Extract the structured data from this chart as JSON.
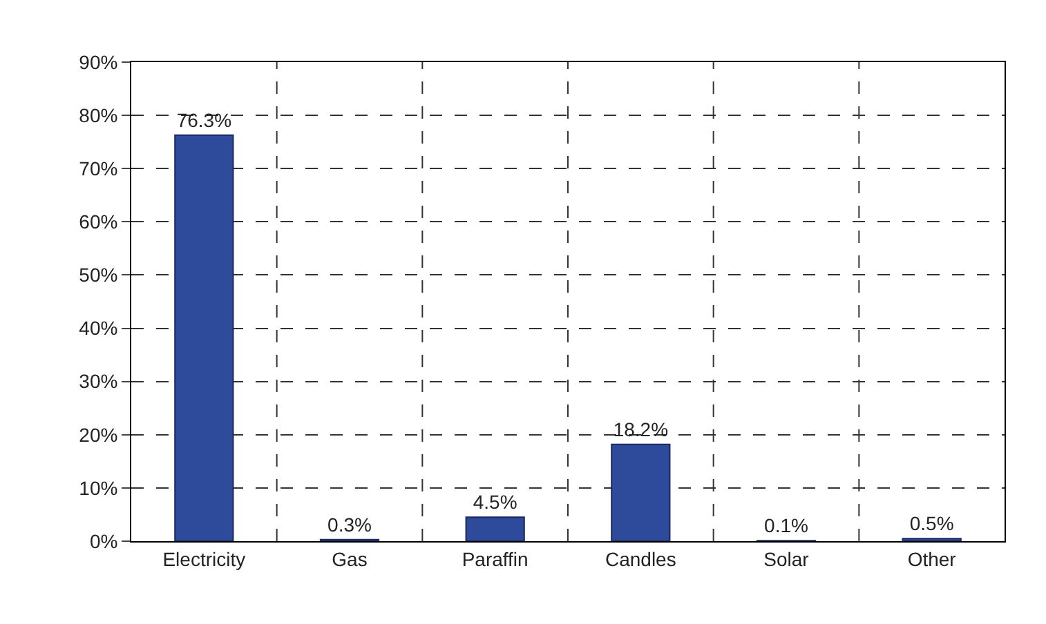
{
  "chart_data": {
    "type": "bar",
    "categories": [
      "Electricity",
      "Gas",
      "Paraffin",
      "Candles",
      "Solar",
      "Other"
    ],
    "values": [
      76.3,
      0.3,
      4.5,
      18.2,
      0.1,
      0.5
    ],
    "value_labels": [
      "76.3%",
      "0.3%",
      "4.5%",
      "18.2%",
      "0.1%",
      "0.5%"
    ],
    "color": "#2e4a9a",
    "ylim": [
      0,
      90
    ],
    "yticks": [
      {
        "value": 0,
        "label": "0%"
      },
      {
        "value": 10,
        "label": "10%"
      },
      {
        "value": 20,
        "label": "20%"
      },
      {
        "value": 30,
        "label": "30%"
      },
      {
        "value": 40,
        "label": "40%"
      },
      {
        "value": 50,
        "label": "50%"
      },
      {
        "value": 60,
        "label": "60%"
      },
      {
        "value": 70,
        "label": "70%"
      },
      {
        "value": 80,
        "label": "80%"
      },
      {
        "value": 90,
        "label": "90%"
      }
    ],
    "grid": true
  }
}
